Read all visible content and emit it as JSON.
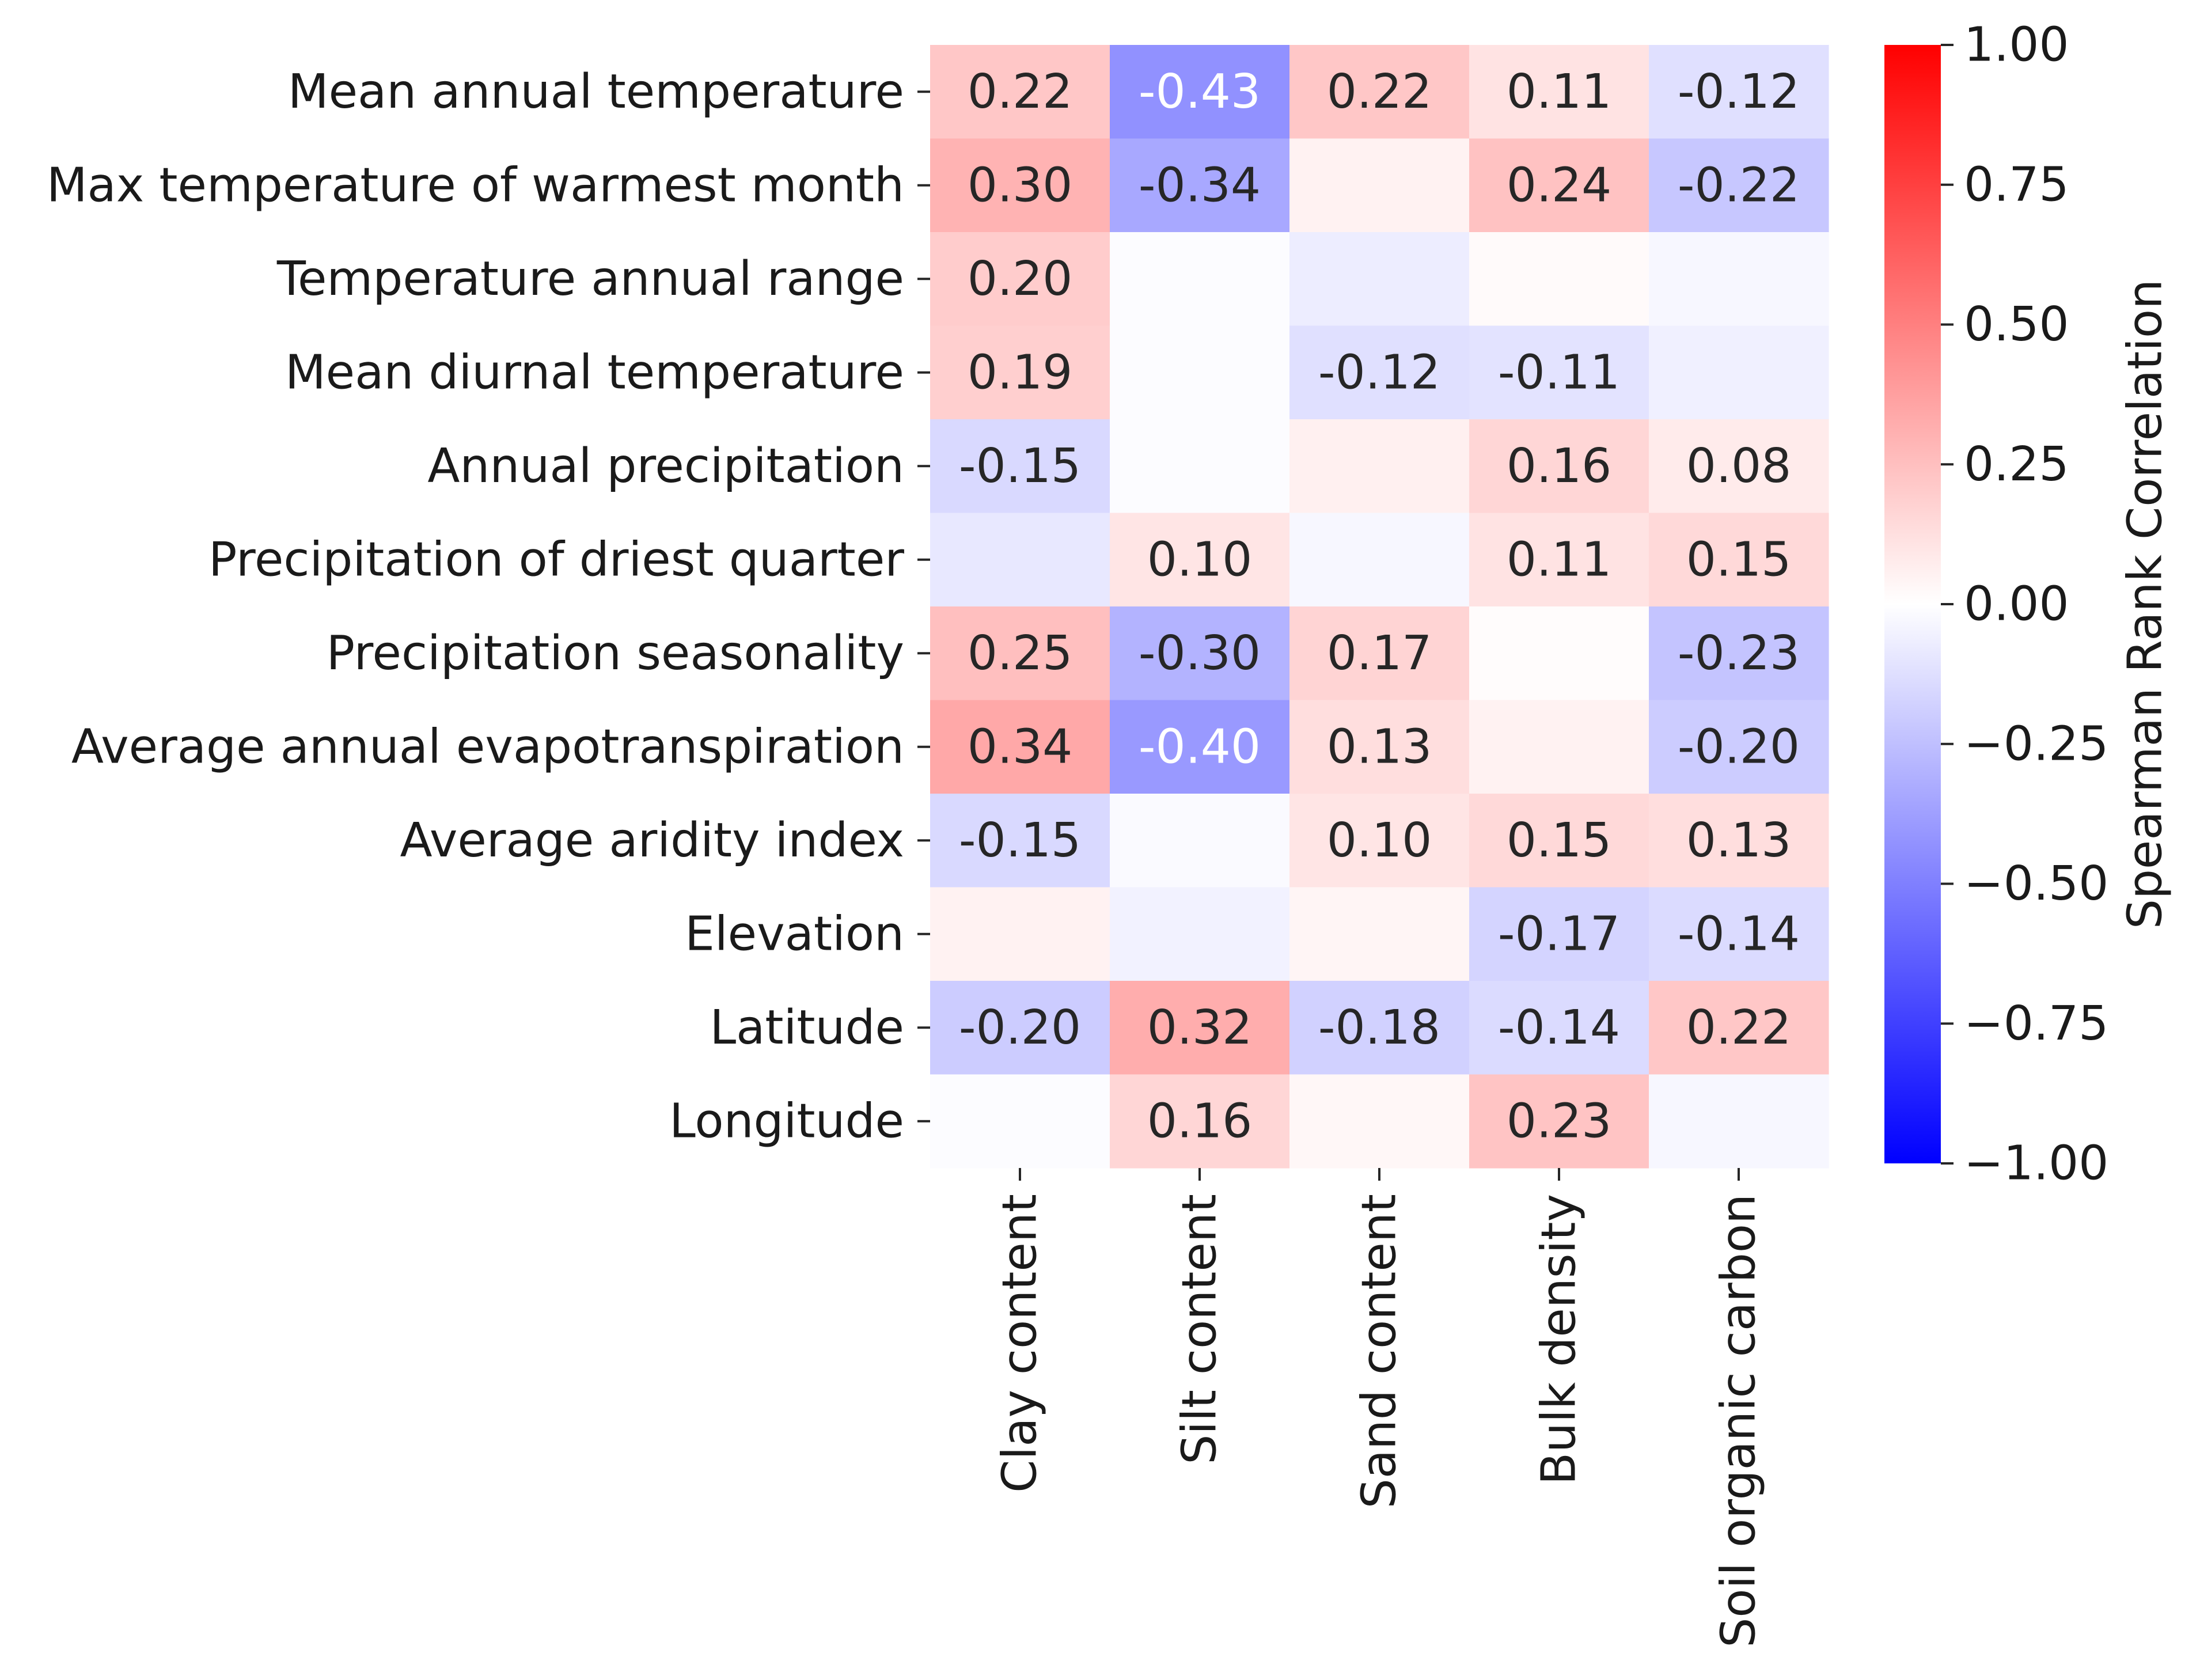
{
  "chart_data": {
    "type": "heatmap",
    "row_labels": [
      "Mean annual temperature",
      "Max temperature of warmest month",
      "Temperature annual range",
      "Mean diurnal temperature",
      "Annual precipitation",
      "Precipitation of driest quarter",
      "Precipitation seasonality",
      "Average annual evapotranspiration",
      "Average aridity index",
      "Elevation",
      "Latitude",
      "Longitude"
    ],
    "col_labels": [
      "Clay content",
      "Silt content",
      "Sand content",
      "Bulk density",
      "Soil organic carbon"
    ],
    "values": [
      [
        0.22,
        -0.43,
        0.22,
        0.11,
        -0.12
      ],
      [
        0.3,
        -0.34,
        0.05,
        0.24,
        -0.22
      ],
      [
        0.2,
        -0.01,
        -0.07,
        0.02,
        -0.03
      ],
      [
        0.19,
        -0.01,
        -0.12,
        -0.11,
        -0.06
      ],
      [
        -0.15,
        -0.01,
        0.06,
        0.16,
        0.08
      ],
      [
        -0.09,
        0.1,
        -0.03,
        0.11,
        0.15
      ],
      [
        0.25,
        -0.3,
        0.17,
        0.01,
        -0.23
      ],
      [
        0.34,
        -0.4,
        0.13,
        0.05,
        -0.2
      ],
      [
        -0.15,
        -0.02,
        0.1,
        0.15,
        0.13
      ],
      [
        0.05,
        -0.05,
        0.04,
        -0.17,
        -0.14
      ],
      [
        -0.2,
        0.32,
        -0.18,
        -0.14,
        0.22
      ],
      [
        -0.01,
        0.16,
        0.03,
        0.23,
        -0.03
      ]
    ],
    "labels": [
      [
        "0.22",
        "-0.43",
        "0.22",
        "0.11",
        "-0.12"
      ],
      [
        "0.30",
        "-0.34",
        "",
        "0.24",
        "-0.22"
      ],
      [
        "0.20",
        "",
        "",
        "",
        ""
      ],
      [
        "0.19",
        "",
        "-0.12",
        "-0.11",
        ""
      ],
      [
        "-0.15",
        "",
        "",
        "0.16",
        "0.08"
      ],
      [
        "",
        "0.10",
        "",
        "0.11",
        "0.15"
      ],
      [
        "0.25",
        "-0.30",
        "0.17",
        "",
        "-0.23"
      ],
      [
        "0.34",
        "-0.40",
        "0.13",
        "",
        "-0.20"
      ],
      [
        "-0.15",
        "",
        "0.10",
        "0.15",
        "0.13"
      ],
      [
        "",
        "",
        "",
        "-0.17",
        "-0.14"
      ],
      [
        "-0.20",
        "0.32",
        "-0.18",
        "-0.14",
        "0.22"
      ],
      [
        "",
        "0.16",
        "",
        "0.23",
        ""
      ]
    ],
    "colormap": "bwr",
    "vmin": -1.0,
    "vmax": 1.0,
    "colorbar": {
      "label": "Spearman Rank Correlation",
      "ticks": [
        1.0,
        0.75,
        0.5,
        0.25,
        0.0,
        -0.25,
        -0.5,
        -0.75,
        -1.0
      ],
      "tick_labels": [
        "1.00",
        "0.75",
        "0.50",
        "0.25",
        "0.00",
        "−0.25",
        "−0.50",
        "−0.75",
        "−1.00"
      ],
      "colors": {
        "max": "#ff0000",
        "mid": "#ffffff",
        "min": "#0000ff"
      }
    },
    "text_colors": {
      "dark": "#262626",
      "light": "#ffffff"
    }
  }
}
